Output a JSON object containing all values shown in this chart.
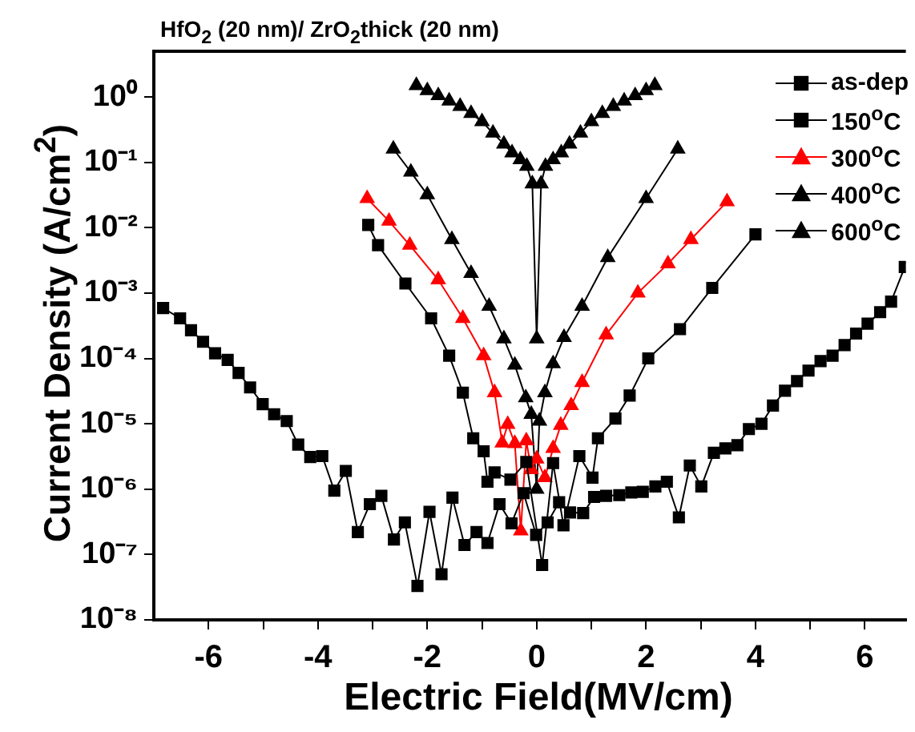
{
  "chart_data": {
    "type": "line",
    "title": "HfO$_{2}$ (20 nm)/ ZrO$_{2}$thick (20 nm)",
    "xlabel": "Electric Field(MV/cm)",
    "ylabel": "Current Density (A/cm$^{2}$)",
    "xlim": [
      -7,
      6.75
    ],
    "xticks": [
      -6,
      {
        "value": -5,
        "label": null
      },
      -4,
      {
        "value": -3,
        "label": null
      },
      -2,
      {
        "value": -1,
        "label": null
      },
      0,
      {
        "value": 1,
        "label": null
      },
      2,
      {
        "value": 3,
        "label": null
      },
      4,
      {
        "value": 5,
        "label": null
      },
      6
    ],
    "ylim": [
      1e-08,
      5
    ],
    "log": "y",
    "yticks": [
      {
        "value": 1e-08,
        "label": "10⁻⁸"
      },
      {
        "value": 1e-07,
        "label": "10⁻⁷"
      },
      {
        "value": 1e-06,
        "label": "10⁻⁶"
      },
      {
        "value": 1e-05,
        "label": "10⁻⁵"
      },
      {
        "value": 0.0001,
        "label": "10⁻⁴"
      },
      {
        "value": 0.001,
        "label": "10⁻³"
      },
      {
        "value": 0.01,
        "label": "10⁻²"
      },
      {
        "value": 0.1,
        "label": "10⁻¹"
      },
      {
        "value": 1,
        "label": "10⁰"
      }
    ],
    "grid": false,
    "legend": "top right",
    "line_style": "solid",
    "series": [
      {
        "name": "as-dep",
        "color": "#000000",
        "marker": "square",
        "x": [
          -6.83,
          -6.52,
          -6.32,
          -6.1,
          -5.88,
          -5.65,
          -5.45,
          -5.24,
          -5.01,
          -4.8,
          -4.57,
          -4.36,
          -4.14,
          -3.92,
          -3.7,
          -3.49,
          -3.27,
          -3.05,
          -2.84,
          -2.61,
          -2.41,
          -2.18,
          -1.96,
          -1.74,
          -1.54,
          -1.32,
          -1.1,
          -0.9,
          -0.68,
          -0.46,
          -0.24,
          -0.01,
          0.2,
          0.41,
          0.61,
          0.85,
          1.05,
          1.27,
          1.51,
          1.73,
          1.94,
          2.17,
          2.38,
          2.6,
          2.8,
          3.01,
          3.24,
          3.45,
          3.67,
          3.88,
          4.11,
          4.32,
          4.54,
          4.76,
          4.97,
          5.19,
          5.41,
          5.63,
          5.84,
          6.05,
          6.28,
          6.48,
          6.73
        ],
        "values": [
          0.00059,
          0.00041,
          0.00027,
          0.00018,
          0.00012,
          9.5e-05,
          6e-05,
          3.6e-05,
          2e-05,
          1.4e-05,
          1.1e-05,
          4.8e-06,
          3.1e-06,
          3.2e-06,
          9.5e-07,
          1.9e-06,
          2.2e-07,
          5.9e-07,
          7.9e-07,
          1.7e-07,
          3.1e-07,
          3.3e-08,
          4.5e-07,
          5e-08,
          7.4e-07,
          1.4e-07,
          2.2e-07,
          1.5e-07,
          5.9e-07,
          3e-07,
          8.7e-07,
          2e-07,
          3.1e-07,
          6.3e-07,
          4.4e-07,
          4.3e-07,
          7.6e-07,
          7.9e-07,
          8.1e-07,
          8.9e-07,
          9.1e-07,
          1.1e-06,
          1.3e-06,
          3.7e-07,
          2.3e-06,
          1.1e-06,
          3.6e-06,
          4.2e-06,
          4.7e-06,
          8.3e-06,
          1e-05,
          1.9e-05,
          3.2e-05,
          4.5e-05,
          6.5e-05,
          9.1e-05,
          0.00011,
          0.00016,
          0.00024,
          0.00034,
          0.00051,
          0.00074,
          0.0025
        ]
      },
      {
        "name": "150$^{o}$C",
        "color": "#000000",
        "marker": "square",
        "x": [
          -3.08,
          -2.9,
          -2.4,
          -1.93,
          -1.6,
          -1.35,
          -1.16,
          -0.97,
          -0.9,
          -0.77,
          -0.48,
          -0.19,
          0.1,
          0.3,
          0.49,
          0.78,
          1.02,
          1.12,
          1.44,
          1.7,
          2.04,
          2.62,
          3.21,
          4.0
        ],
        "values": [
          0.011,
          0.0054,
          0.0014,
          0.00041,
          0.00011,
          3e-05,
          6e-06,
          3.8e-06,
          1.3e-06,
          1.8e-06,
          1.4e-06,
          2.6e-06,
          6.9e-08,
          2.5e-06,
          2.8e-07,
          3.2e-06,
          1.5e-06,
          6e-06,
          1.2e-05,
          2.7e-05,
          0.0001,
          0.00028,
          0.0012,
          0.0079
        ]
      },
      {
        "name": "300$^{o}$C",
        "color": "#ff0000",
        "marker": "triangle",
        "x": [
          -3.1,
          -2.7,
          -2.32,
          -1.8,
          -1.35,
          -0.97,
          -0.77,
          -0.63,
          -0.53,
          -0.4,
          -0.29,
          -0.19,
          -0.1,
          0,
          0.15,
          0.3,
          0.44,
          0.63,
          0.83,
          1.27,
          1.85,
          2.4,
          2.82,
          3.48
        ],
        "values": [
          0.028,
          0.0126,
          0.0054,
          0.0016,
          0.00041,
          0.00011,
          3e-05,
          5.1e-06,
          9.8e-06,
          5e-06,
          2.3e-07,
          5.5e-06,
          2e-06,
          2.9e-06,
          1.5e-06,
          4.2e-06,
          9.5e-06,
          1.9e-05,
          4.3e-05,
          0.00023,
          0.001,
          0.0028,
          0.0066,
          0.025
        ]
      },
      {
        "name": "400$^{o}$C",
        "color": "#000000",
        "marker": "triangle",
        "x": [
          -2.62,
          -2.3,
          -2.0,
          -1.55,
          -1.2,
          -0.87,
          -0.6,
          -0.4,
          -0.2,
          -0.1,
          0,
          0.05,
          0.15,
          0.3,
          0.5,
          0.83,
          1.3,
          2.0,
          2.58
        ],
        "values": [
          0.16,
          0.071,
          0.032,
          0.0066,
          0.002,
          0.00063,
          0.0002,
          7.9e-05,
          2.5e-05,
          1.4e-05,
          1e-06,
          1.1e-05,
          3e-05,
          8.3e-05,
          0.00021,
          0.00063,
          0.0035,
          0.028,
          0.16
        ]
      },
      {
        "name": "600$^{o}$C",
        "color": "#000000",
        "marker": "triangle",
        "x": [
          -2.2,
          -2.0,
          -1.8,
          -1.6,
          -1.4,
          -1.2,
          -1.0,
          -0.8,
          -0.6,
          -0.45,
          -0.3,
          -0.18,
          -0.08,
          0,
          0.08,
          0.16,
          0.3,
          0.45,
          0.6,
          0.8,
          1.0,
          1.2,
          1.4,
          1.6,
          1.8,
          2.0,
          2.16
        ],
        "values": [
          1.5,
          1.25,
          1.05,
          0.87,
          0.72,
          0.56,
          0.42,
          0.28,
          0.19,
          0.14,
          0.11,
          0.087,
          0.047,
          0.0002,
          0.047,
          0.087,
          0.11,
          0.14,
          0.19,
          0.28,
          0.42,
          0.56,
          0.72,
          0.87,
          1.05,
          1.25,
          1.5
        ]
      }
    ]
  }
}
